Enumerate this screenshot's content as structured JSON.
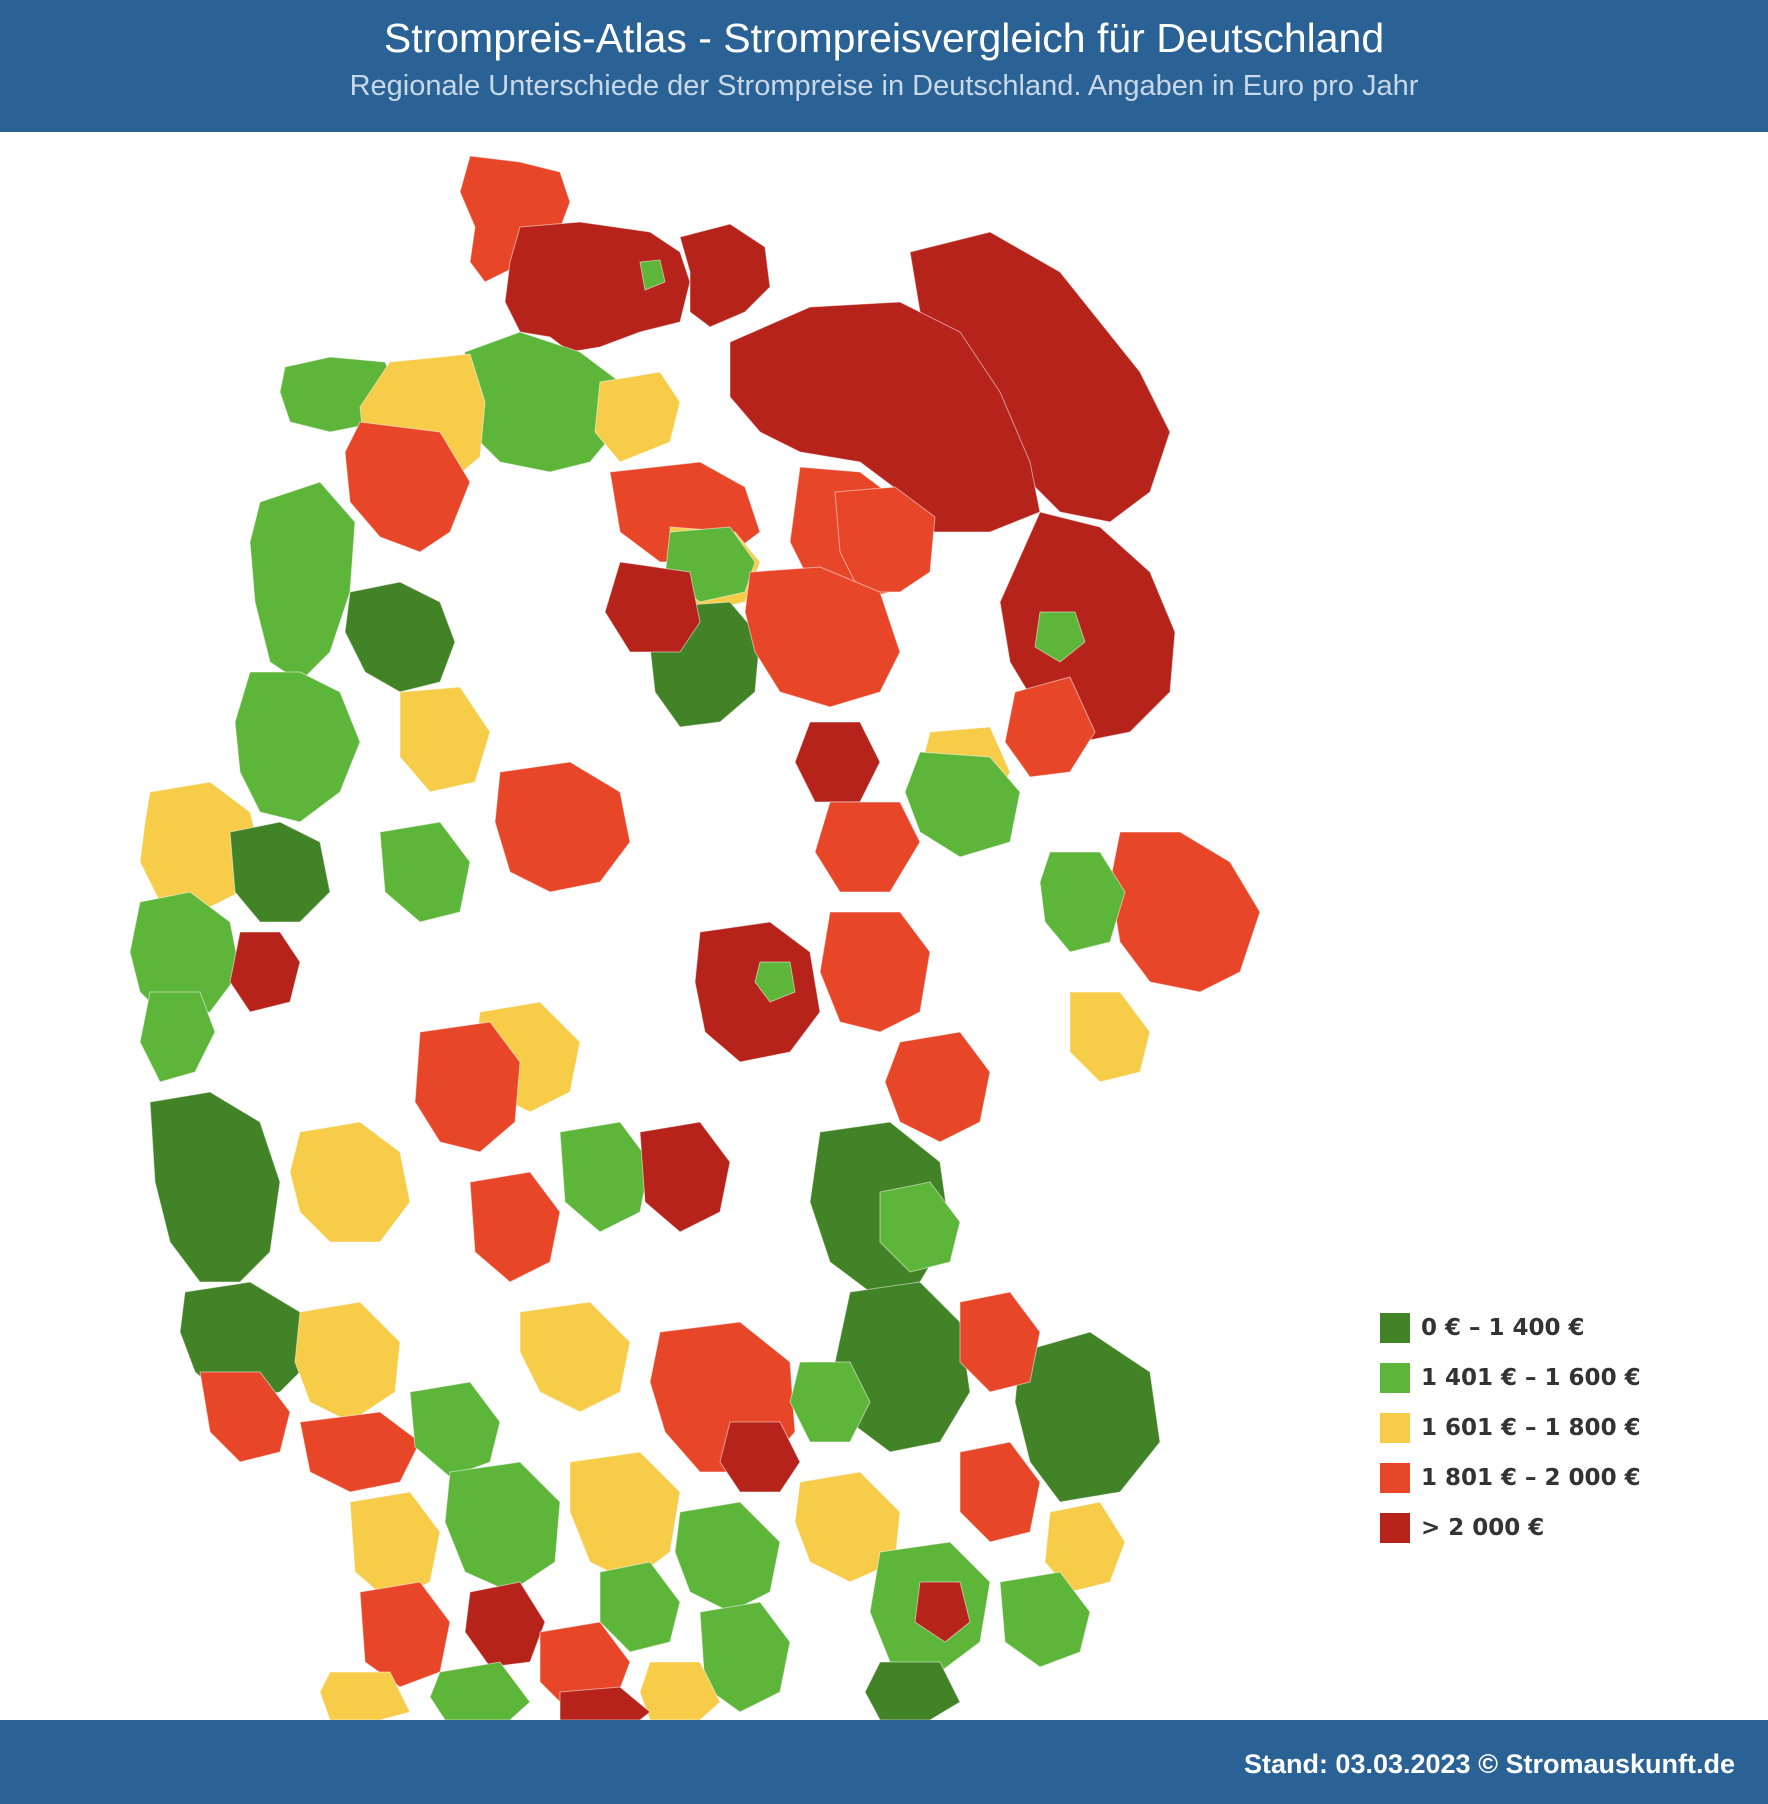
{
  "header": {
    "title": "Strompreis-Atlas - Strompreisvergleich für Deutschland",
    "subtitle": "Regionale Unterschiede der Strompreise in Deutschland. Angaben in Euro pro Jahr"
  },
  "legend": {
    "items": [
      {
        "label": "0 € – 1 400 €",
        "color": "#418326"
      },
      {
        "label": "1 401 € – 1 600 €",
        "color": "#5db53a"
      },
      {
        "label": "1 601 € – 1 800 €",
        "color": "#f6cc48"
      },
      {
        "label": "1 801 € – 2 000 €",
        "color": "#e84628"
      },
      {
        "label": "> 2 000 €",
        "color": "#b5231b"
      }
    ]
  },
  "map": {
    "country": "Deutschland",
    "regions": [
      {
        "id": "schleswig-holstein-nord",
        "category": 3
      },
      {
        "id": "schleswig-holstein-west",
        "category": 4
      },
      {
        "id": "ostholstein",
        "category": 4
      },
      {
        "id": "kiel-enclave",
        "category": 1
      },
      {
        "id": "ostfriesland",
        "category": 1
      },
      {
        "id": "cuxhaven",
        "category": 1
      },
      {
        "id": "bremen-umland",
        "category": 2
      },
      {
        "id": "hamburg-sued",
        "category": 2
      },
      {
        "id": "lueneburg",
        "category": 3
      },
      {
        "id": "altmark",
        "category": 2
      },
      {
        "id": "vorpommern",
        "category": 4
      },
      {
        "id": "mecklenburg",
        "category": 4
      },
      {
        "id": "prignitz",
        "category": 3
      },
      {
        "id": "brandenburg-nord",
        "category": 3
      },
      {
        "id": "oder",
        "category": 4
      },
      {
        "id": "berlin",
        "category": 1
      },
      {
        "id": "potsdam",
        "category": 2
      },
      {
        "id": "lausitz-nord",
        "category": 3
      },
      {
        "id": "emsland",
        "category": 1
      },
      {
        "id": "osnabrueck",
        "category": 0
      },
      {
        "id": "hannover-sued",
        "category": 0
      },
      {
        "id": "braunschweig",
        "category": 1
      },
      {
        "id": "niedersachsen-mitte",
        "category": 3
      },
      {
        "id": "celle",
        "category": 4
      },
      {
        "id": "magdeburg",
        "category": 3
      },
      {
        "id": "harz",
        "category": 4
      },
      {
        "id": "dessau",
        "category": 1
      },
      {
        "id": "sachsen-anhalt-sued",
        "category": 3
      },
      {
        "id": "muensterland",
        "category": 1
      },
      {
        "id": "ruhrgebiet",
        "category": 2
      },
      {
        "id": "sauerland",
        "category": 0
      },
      {
        "id": "niederrhein",
        "category": 1
      },
      {
        "id": "koeln",
        "category": 4
      },
      {
        "id": "aachen",
        "category": 1
      },
      {
        "id": "bielefeld",
        "category": 2
      },
      {
        "id": "paderborn",
        "category": 1
      },
      {
        "id": "kassel",
        "category": 3
      },
      {
        "id": "erfurt",
        "category": 4
      },
      {
        "id": "gotha-enclave",
        "category": 1
      },
      {
        "id": "thueringen-ost",
        "category": 3
      },
      {
        "id": "leipzig",
        "category": 3
      },
      {
        "id": "dresden",
        "category": 1
      },
      {
        "id": "oberlausitz",
        "category": 2
      },
      {
        "id": "erzgebirge",
        "category": 3
      },
      {
        "id": "vogtland",
        "category": 2
      },
      {
        "id": "eifel",
        "category": 0
      },
      {
        "id": "westerwald",
        "category": 2
      },
      {
        "id": "hessen-mitte",
        "category": 3
      },
      {
        "id": "fulda",
        "category": 1
      },
      {
        "id": "frankfurt",
        "category": 3
      },
      {
        "id": "rhoen",
        "category": 4
      },
      {
        "id": "oberfranken",
        "category": 0
      },
      {
        "id": "hof",
        "category": 1
      },
      {
        "id": "hunsrueck",
        "category": 0
      },
      {
        "id": "pfalz",
        "category": 2
      },
      {
        "id": "saarland",
        "category": 3
      },
      {
        "id": "mainz",
        "category": 3
      },
      {
        "id": "heidelberg",
        "category": 1
      },
      {
        "id": "wuerzburg",
        "category": 2
      },
      {
        "id": "nuernberg",
        "category": 3
      },
      {
        "id": "nuernberg-kern",
        "category": 4
      },
      {
        "id": "oberpfalz",
        "category": 0
      },
      {
        "id": "oberpfalz-west",
        "category": 1
      },
      {
        "id": "niederbayern-ost",
        "category": 0
      },
      {
        "id": "karlsruhe",
        "category": 2
      },
      {
        "id": "stuttgart",
        "category": 1
      },
      {
        "id": "ostalb",
        "category": 2
      },
      {
        "id": "neckar-alb",
        "category": 4
      },
      {
        "id": "augsburg",
        "category": 1
      },
      {
        "id": "ingolstadt",
        "category": 2
      },
      {
        "id": "muenchen",
        "category": 1
      },
      {
        "id": "muenchen-kern",
        "category": 4
      },
      {
        "id": "landshut",
        "category": 3
      },
      {
        "id": "regensburg",
        "category": 3
      },
      {
        "id": "passau",
        "category": 2
      },
      {
        "id": "oberbayern-ost",
        "category": 1
      },
      {
        "id": "rosenheim",
        "category": 0
      },
      {
        "id": "allgaeu-west",
        "category": 1
      },
      {
        "id": "allgaeu",
        "category": 2
      },
      {
        "id": "schwarzwald-nord",
        "category": 3
      },
      {
        "id": "schwarzwald-sued",
        "category": 2
      },
      {
        "id": "freiburg",
        "category": 1
      },
      {
        "id": "schwarzwald-ost",
        "category": 3
      },
      {
        "id": "bodensee",
        "category": 4
      },
      {
        "id": "oberschwaben",
        "category": 1
      }
    ]
  },
  "footer": {
    "text": "Stand: 03.03.2023 © Stromauskunft.de"
  }
}
